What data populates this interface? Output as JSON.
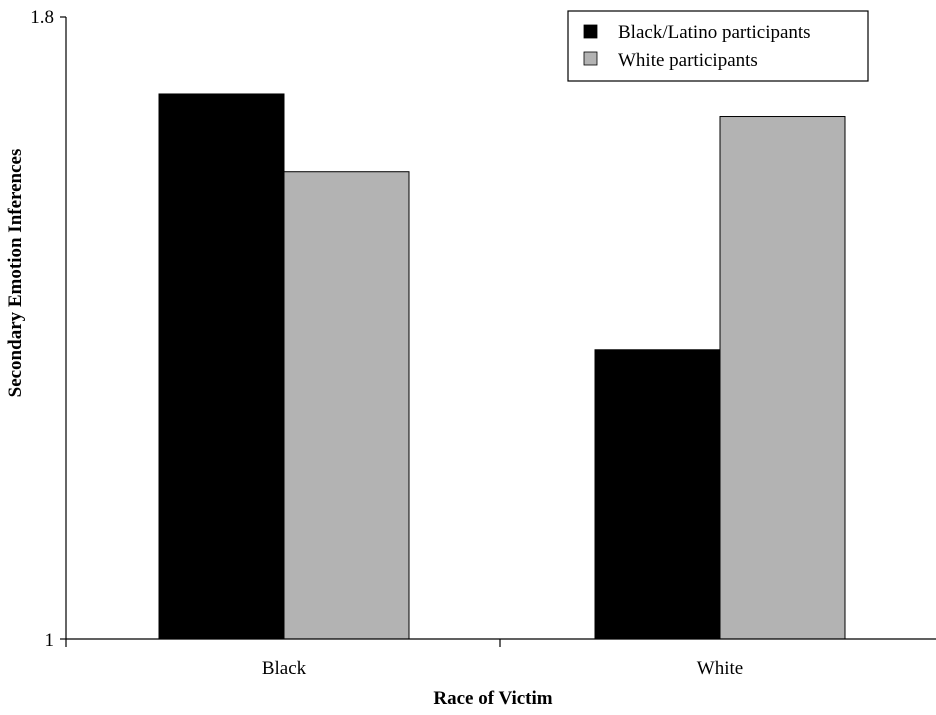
{
  "chart_data": {
    "type": "bar",
    "title": "",
    "xlabel": "Race of Victim",
    "ylabel": "Secondary Emotion Inferences",
    "categories": [
      "Black",
      "White"
    ],
    "series": [
      {
        "name": "Black/Latino participants",
        "color": "#000000",
        "values": [
          1.701,
          1.372
        ]
      },
      {
        "name": "White participants",
        "color": "#b3b3b3",
        "values": [
          1.601,
          1.672
        ]
      }
    ],
    "ylim": [
      1,
      1.8
    ],
    "y_ticks": [
      "1",
      "1.8"
    ],
    "grid": false,
    "legend_position": "top-right"
  }
}
